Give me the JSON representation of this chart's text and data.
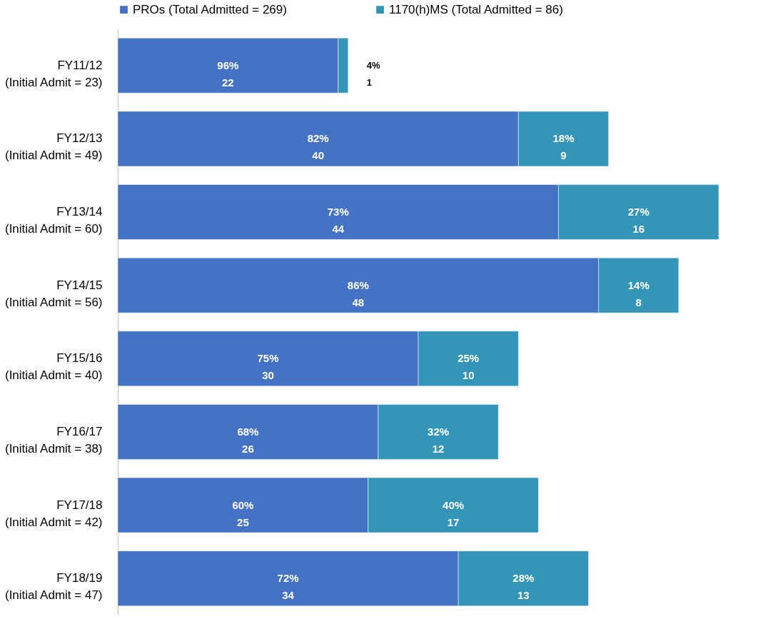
{
  "chart_data": {
    "type": "bar",
    "orientation": "horizontal",
    "stacked": true,
    "legend": "top",
    "grid": false,
    "categories": [
      "FY11/12\n(Initial Admit = 23)",
      "FY12/13\n(Initial Admit = 49)",
      "FY13/14\n(Initial Admit = 60)",
      "FY14/15\n(Initial Admit = 56)",
      "FY15/16\n(Initial Admit = 40)",
      "FY16/17\n(Initial Admit = 38)",
      "FY17/18\n(Initial Admit = 42)",
      "FY18/19\n(Initial Admit = 47)"
    ],
    "series": [
      {
        "name": "PROs (Total Admitted = 269)",
        "color": "#4472c4",
        "values": [
          22,
          40,
          44,
          48,
          30,
          26,
          25,
          34
        ],
        "value_labels": [
          "96%\n22",
          "82%\n40",
          "73%\n44",
          "86%\n48",
          "75%\n30",
          "68%\n26",
          "60%\n25",
          "72%\n34"
        ]
      },
      {
        "name": "1170(h)MS (Total Admitted = 86)",
        "color": "#3396b8",
        "values": [
          1,
          9,
          16,
          8,
          10,
          12,
          17,
          13
        ],
        "value_labels": [
          "4%\n1",
          "18%\n9",
          "27%\n16",
          "14%\n8",
          "25%\n10",
          "32%\n12",
          "40%\n17",
          "28%\n13"
        ]
      }
    ]
  }
}
